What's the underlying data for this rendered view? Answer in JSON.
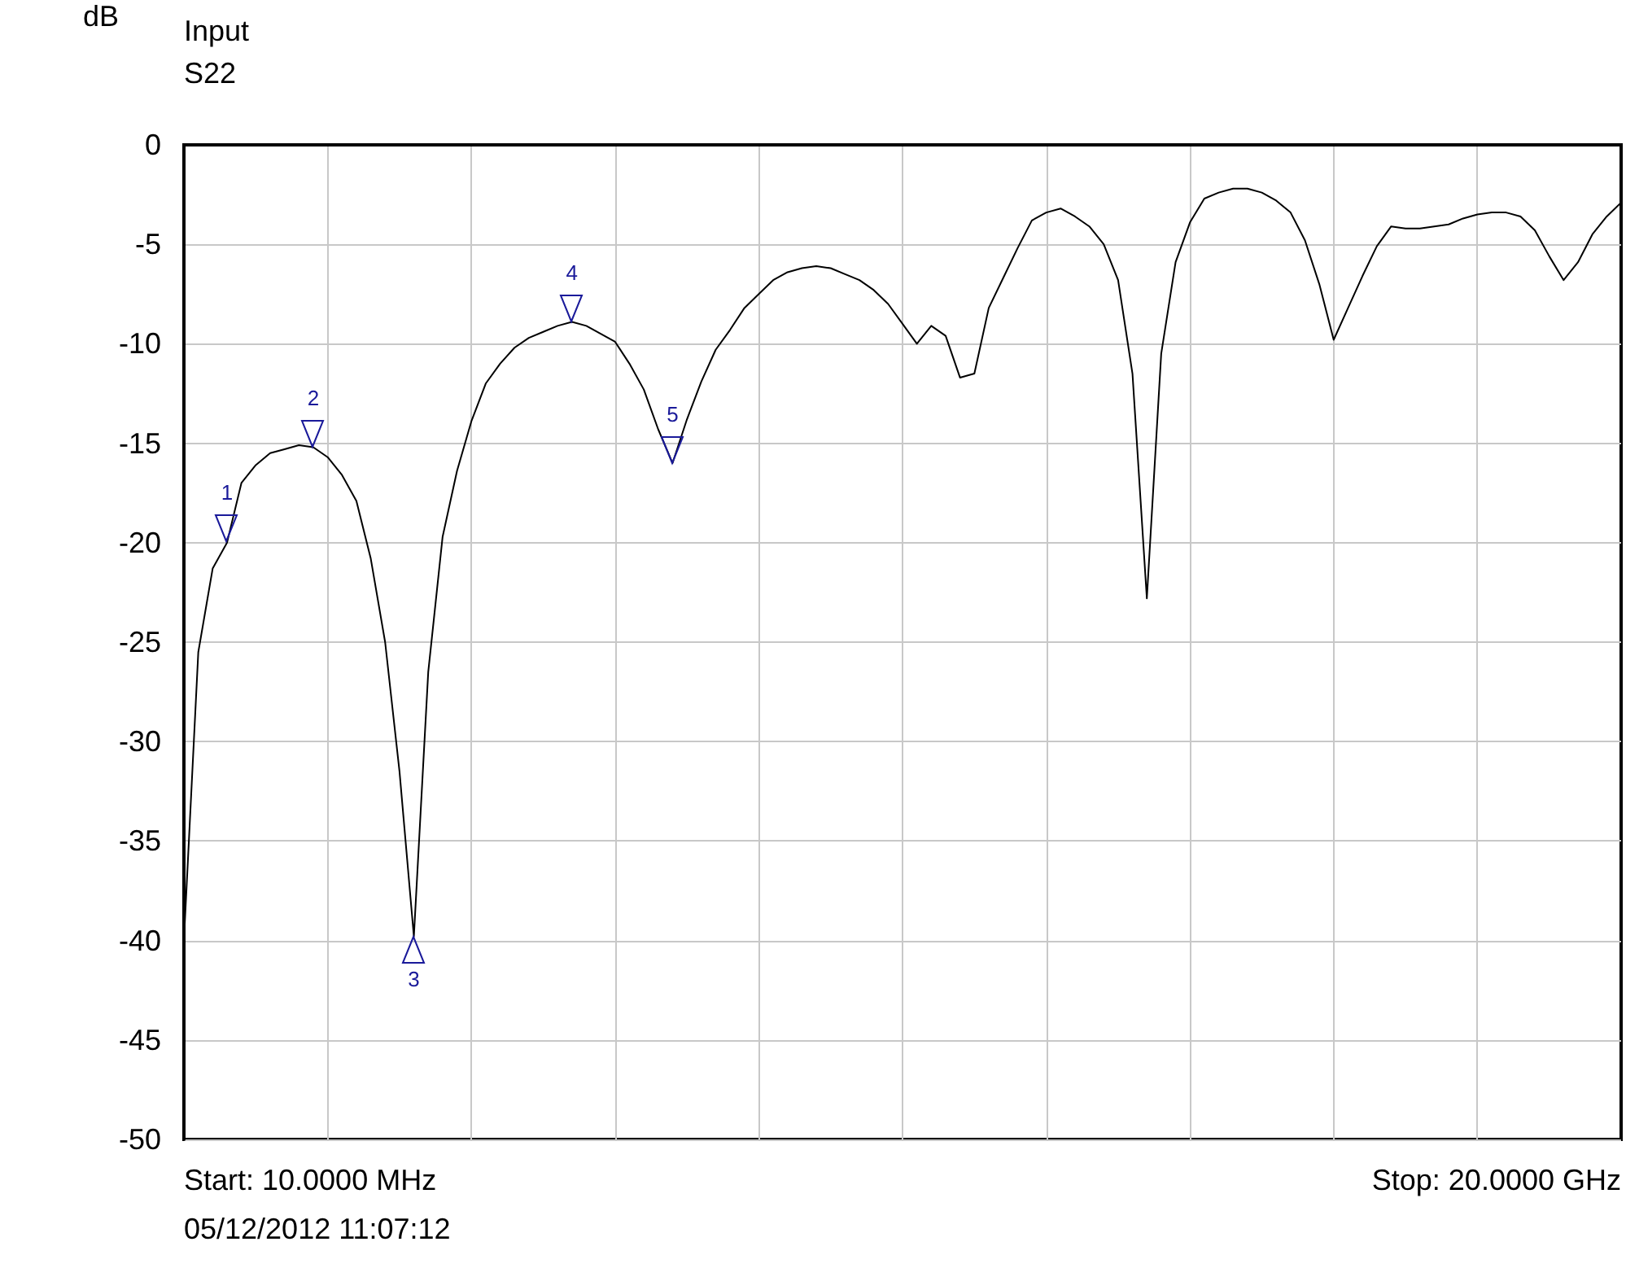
{
  "chart_data": {
    "type": "line",
    "title": "Input",
    "subtitle": "S22",
    "ylabel": "dB",
    "categories": [
      null,
      null,
      null,
      null,
      null,
      null,
      null,
      null,
      null,
      null,
      null,
      null,
      null,
      null,
      null,
      null,
      null,
      null,
      null,
      null,
      null,
      null,
      null,
      null,
      null,
      null,
      null,
      null,
      null,
      null,
      null,
      null,
      null,
      null,
      null,
      null,
      null,
      null,
      null,
      null,
      null,
      null,
      null,
      null,
      null,
      null,
      null,
      null,
      null,
      null,
      null,
      null,
      null,
      null,
      null,
      null,
      null,
      null,
      null,
      null,
      null,
      null,
      null,
      null,
      null,
      null,
      null,
      null,
      null,
      null,
      null,
      null,
      null,
      null,
      null,
      null,
      null,
      null,
      null,
      null,
      null,
      null,
      null,
      null,
      null,
      null,
      null,
      null,
      null,
      null,
      null,
      null,
      null,
      null,
      null,
      null,
      null,
      null,
      null,
      null,
      null
    ],
    "color": "#000000",
    "values": [
      -40,
      -25.5,
      -21.3,
      -20,
      -17,
      -16.1,
      -15.5,
      -15.3,
      -15.1,
      -15.2,
      -15.7,
      -16.6,
      -17.9,
      -20.8,
      -25,
      -31.5,
      -39.8,
      -26.5,
      -19.7,
      -16.4,
      -13.9,
      -12,
      -11,
      -10.2,
      -9.7,
      -9.4,
      -9.1,
      -8.9,
      -9.1,
      -9.5,
      -9.9,
      -11,
      -12.3,
      -14.3,
      -16,
      -13.8,
      -11.9,
      -10.3,
      -9.3,
      -8.2,
      -7.5,
      -6.8,
      -6.4,
      -6.2,
      -6.1,
      -6.2,
      -6.5,
      -6.8,
      -7.3,
      -8,
      -9,
      -10,
      -9.1,
      -9.6,
      -11.7,
      -11.5,
      -8.2,
      -6.7,
      -5.2,
      -3.8,
      -3.4,
      -3.2,
      -3.6,
      -4.1,
      -5,
      -6.8,
      -11.5,
      -22.8,
      -10.5,
      -5.9,
      -3.9,
      -2.7,
      -2.4,
      -2.2,
      -2.2,
      -2.4,
      -2.8,
      -3.4,
      -4.8,
      -7,
      -9.8,
      -8.2,
      -6.6,
      -5.1,
      -4.1,
      -4.2,
      -4.2,
      -4.1,
      -4,
      -3.7,
      -3.5,
      -3.4,
      -3.4,
      -3.6,
      -4.3,
      -5.6,
      -6.8,
      -5.9,
      -4.5,
      -3.6,
      -2.9
    ],
    "ylim": [
      -50,
      0
    ],
    "yticks": [
      -50,
      -45,
      -40,
      -35,
      -30,
      -25,
      -20,
      -15,
      -10,
      -5,
      0
    ],
    "tick_labels": "y",
    "grid": true,
    "line_style": "solid",
    "annotations": [
      "Start: 10.0000 MHz",
      "Stop: 20.0000 GHz",
      "05/12/2012 11:07:12",
      {
        "text": "1",
        "y": -20
      },
      {
        "text": "2",
        "y": -15.2
      },
      {
        "text": "3",
        "y": -39.8
      },
      {
        "text": "4",
        "y": -8.9
      },
      {
        "text": "5",
        "y": -16
      }
    ]
  }
}
